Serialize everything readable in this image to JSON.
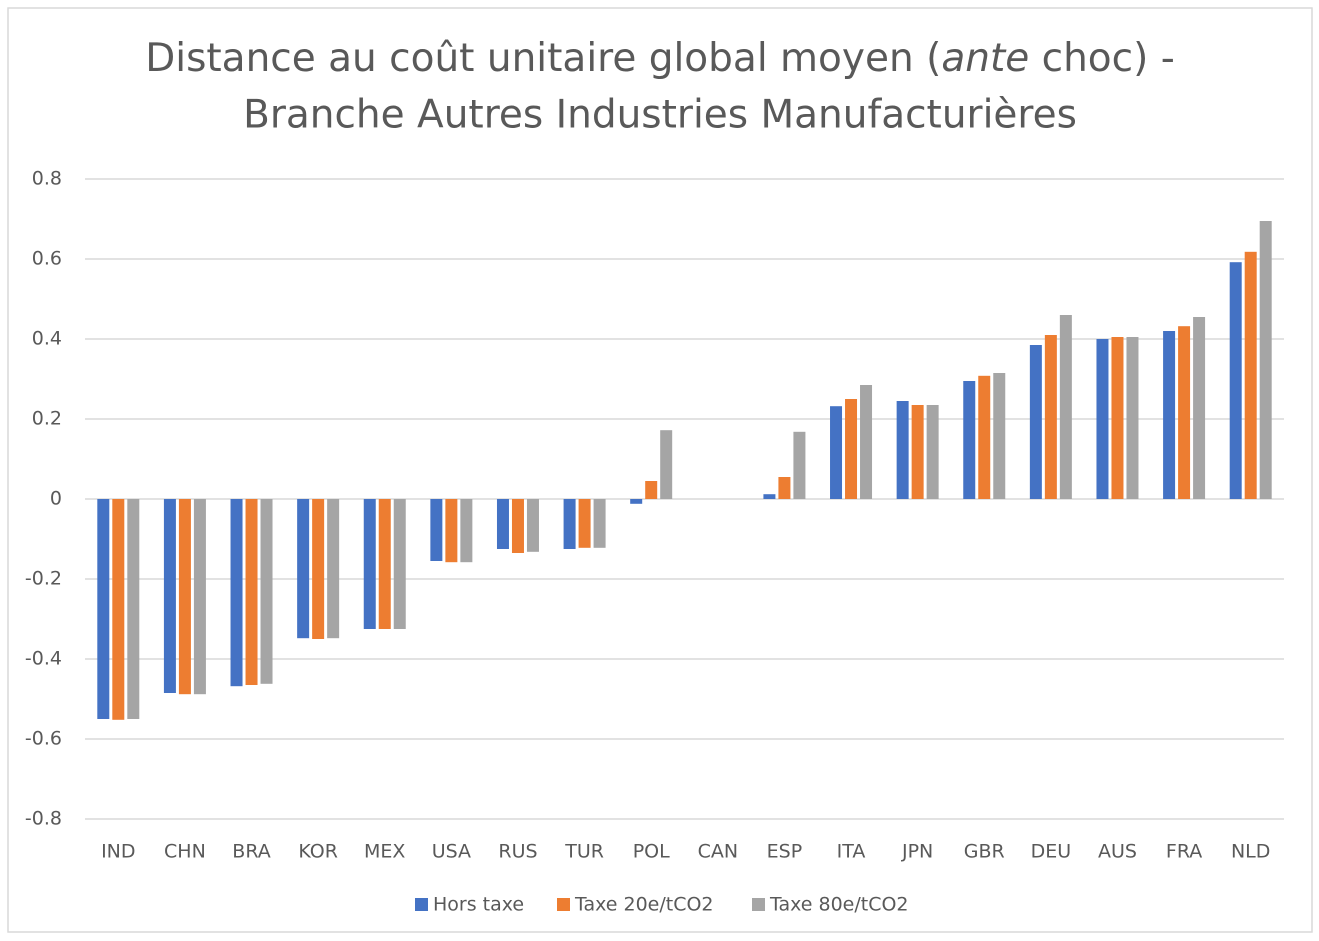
{
  "chart_data": {
    "type": "bar",
    "title": [
      "Distance au coût unitaire global moyen (",
      "ante",
      " choc) -",
      "Branche Autres Industries Manufacturières"
    ],
    "categories": [
      "IND",
      "CHN",
      "BRA",
      "KOR",
      "MEX",
      "USA",
      "RUS",
      "TUR",
      "POL",
      "CAN",
      "ESP",
      "ITA",
      "JPN",
      "GBR",
      "DEU",
      "AUS",
      "FRA",
      "NLD"
    ],
    "series": [
      {
        "name": "Hors taxe",
        "color": "#4472c4",
        "values": [
          -0.55,
          -0.485,
          -0.468,
          -0.348,
          -0.325,
          -0.155,
          -0.125,
          -0.125,
          -0.012,
          0,
          0.012,
          0.232,
          0.245,
          0.295,
          0.385,
          0.4,
          0.42,
          0.592
        ]
      },
      {
        "name": "Taxe 20e/tCO2",
        "color": "#ed7d31",
        "values": [
          -0.552,
          -0.488,
          -0.465,
          -0.35,
          -0.325,
          -0.158,
          -0.135,
          -0.122,
          0.045,
          0,
          0.055,
          0.25,
          0.235,
          0.308,
          0.41,
          0.405,
          0.432,
          0.618
        ]
      },
      {
        "name": "Taxe 80e/tCO2",
        "color": "#a5a5a5",
        "values": [
          -0.55,
          -0.488,
          -0.462,
          -0.348,
          -0.325,
          -0.158,
          -0.132,
          -0.122,
          0.172,
          0,
          0.168,
          0.285,
          0.235,
          0.315,
          0.46,
          0.405,
          0.455,
          0.695
        ]
      }
    ],
    "ylim": [
      -0.8,
      0.8
    ],
    "yticks": [
      -0.8,
      -0.6,
      -0.4,
      -0.2,
      0,
      0.2,
      0.4,
      0.6,
      0.8
    ],
    "grid": true,
    "legend": "bottom"
  }
}
